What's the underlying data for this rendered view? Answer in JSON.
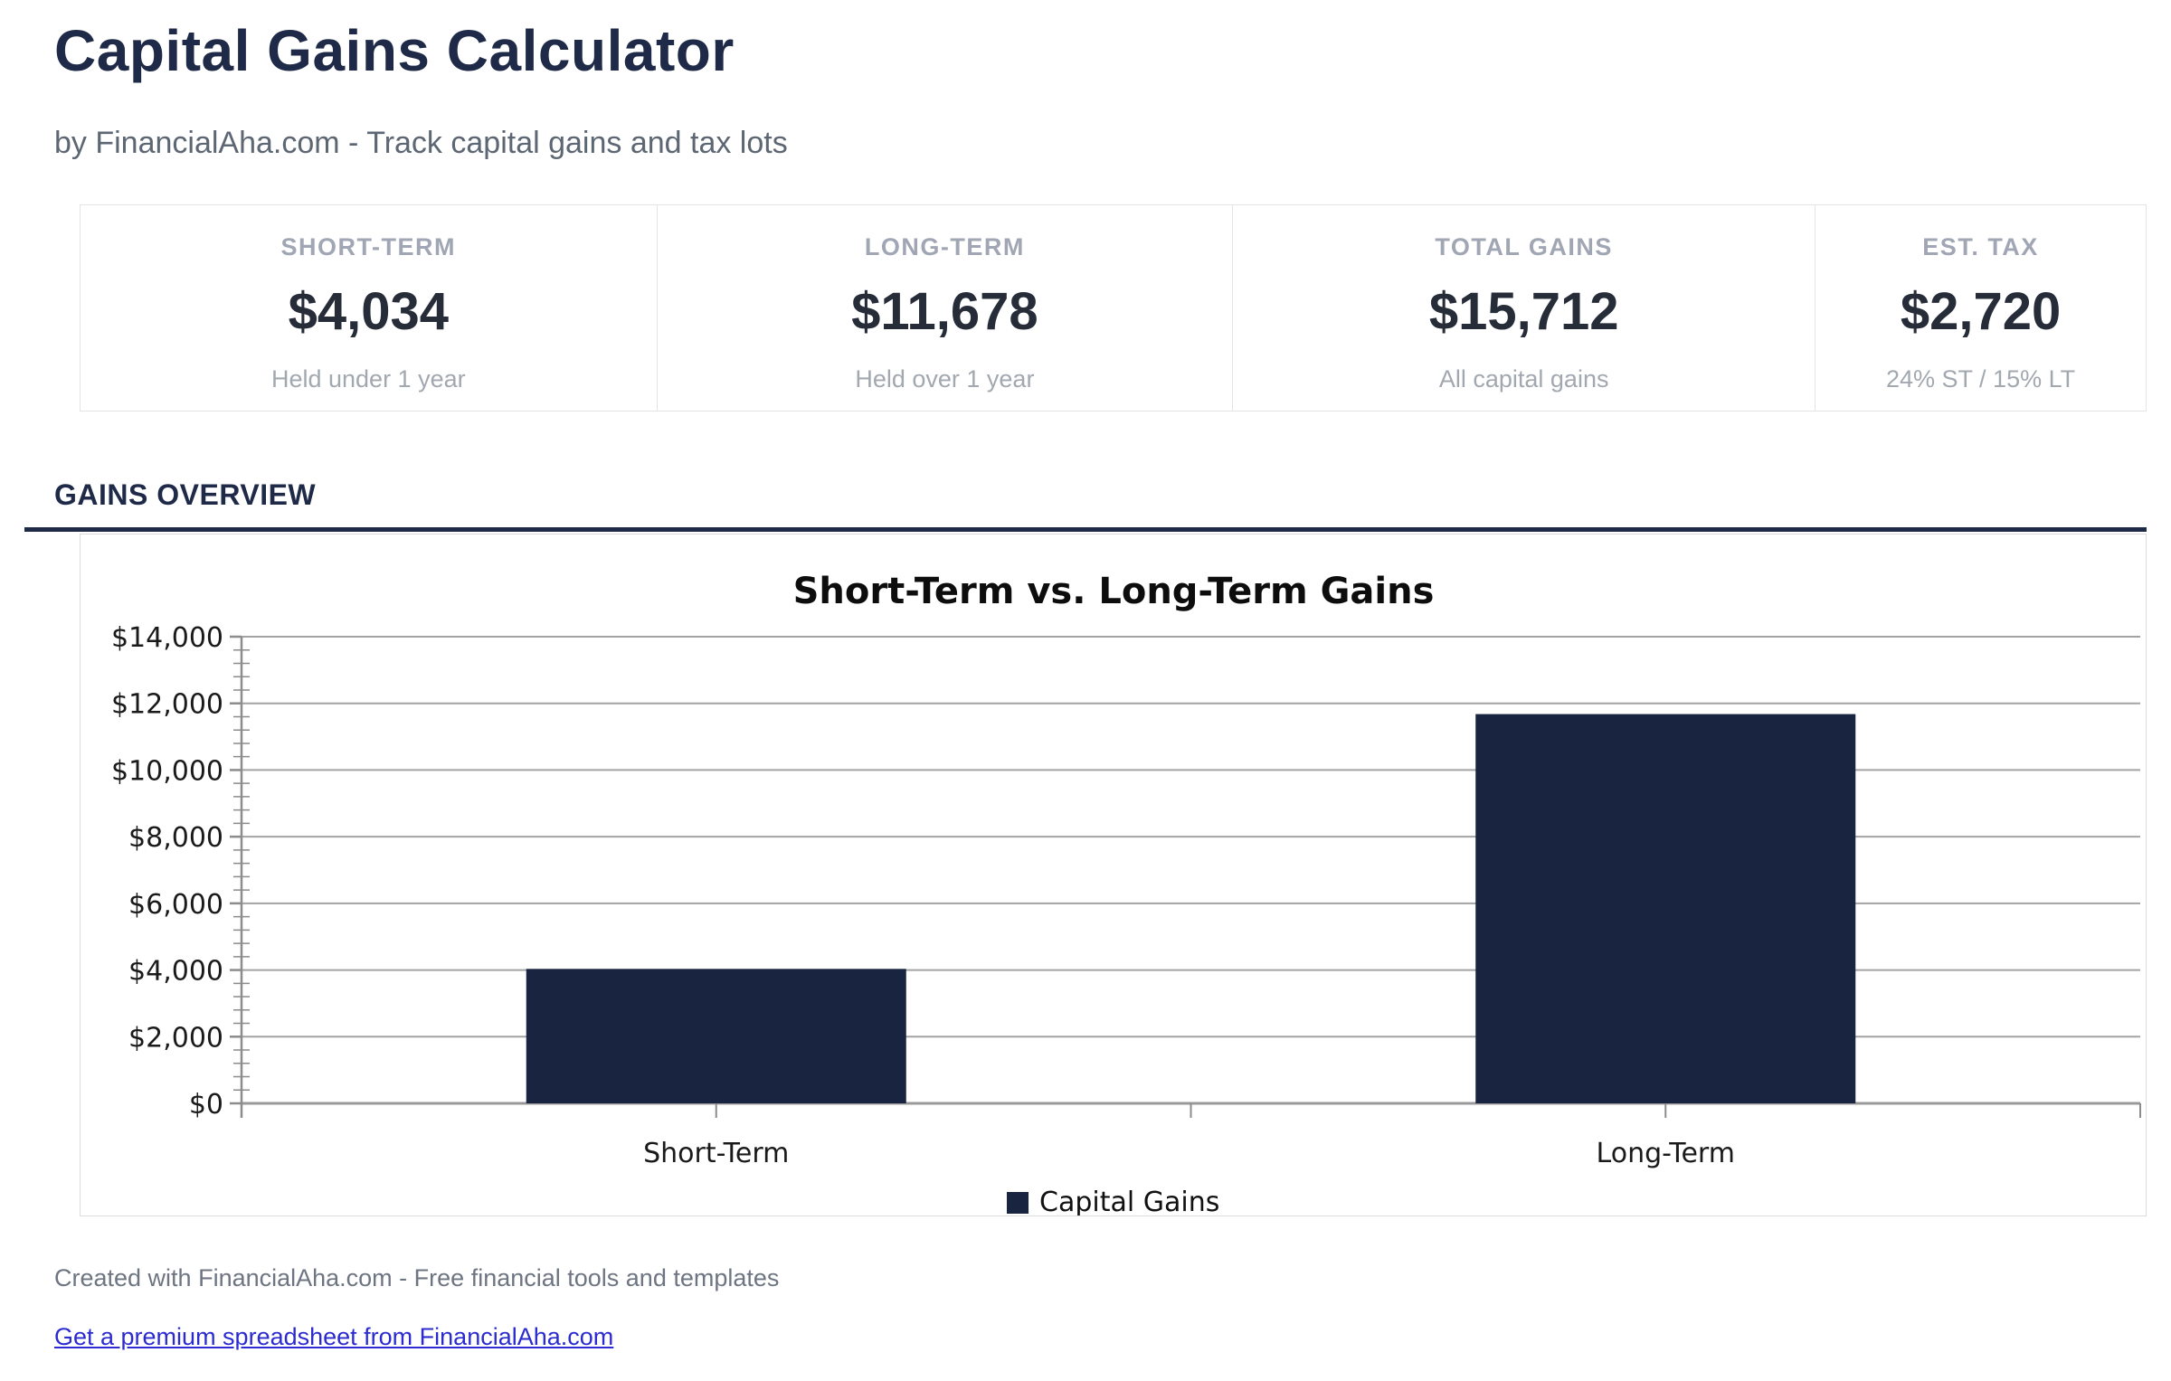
{
  "header": {
    "title": "Capital Gains Calculator",
    "subtitle": "by FinancialAha.com - Track capital gains and tax lots"
  },
  "cards": [
    {
      "label": "SHORT-TERM",
      "value": "$4,034",
      "sublabel": "Held under 1 year"
    },
    {
      "label": "LONG-TERM",
      "value": "$11,678",
      "sublabel": "Held over 1 year"
    },
    {
      "label": "TOTAL GAINS",
      "value": "$15,712",
      "sublabel": "All capital gains"
    },
    {
      "label": "EST. TAX",
      "value": "$2,720",
      "sublabel": "24% ST / 15% LT"
    }
  ],
  "section": {
    "title": "GAINS OVERVIEW"
  },
  "chart_data": {
    "type": "bar",
    "title": "Short-Term vs. Long-Term Gains",
    "categories": [
      "Short-Term",
      "Long-Term"
    ],
    "series": [
      {
        "name": "Capital Gains",
        "values": [
          4034,
          11678
        ]
      }
    ],
    "ylim": [
      0,
      14000
    ],
    "ytick_step": 2000,
    "minor_tick_step": 400,
    "ytick_labels": [
      "$0",
      "$2,000",
      "$4,000",
      "$6,000",
      "$8,000",
      "$10,000",
      "$12,000",
      "$14,000"
    ],
    "grid": true,
    "legend_position": "bottom",
    "legend_label": "Capital Gains",
    "bar_color": "#182440",
    "accent_color": "#1e2a47"
  },
  "footer": {
    "note": "Created with FinancialAha.com - Free financial tools and templates",
    "link_label": "Get a premium spreadsheet from FinancialAha.com"
  }
}
